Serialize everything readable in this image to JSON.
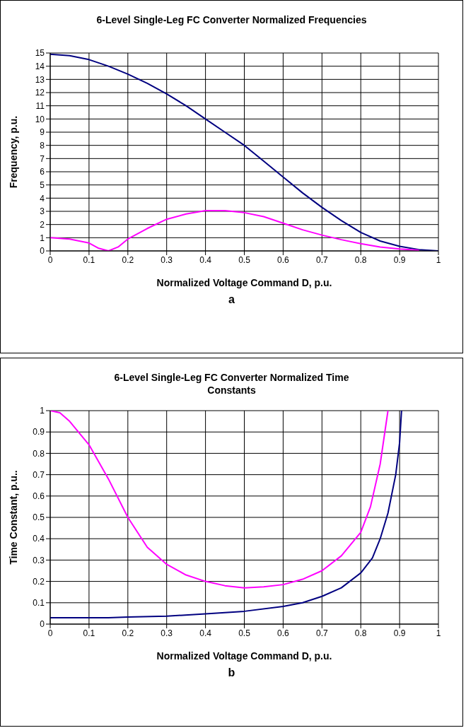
{
  "chart_data": [
    {
      "type": "line",
      "title": "6-Level Single-Leg FC Converter Normalized Frequencies",
      "xlabel": "Normalized Voltage Command D, p.u.",
      "ylabel": "Frequency, p.u.",
      "annotations": [
        "a"
      ],
      "xlim": [
        0,
        1
      ],
      "xticks": [
        0,
        0.1,
        0.2,
        0.3,
        0.4,
        0.5,
        0.6,
        0.7,
        0.8,
        0.9,
        1
      ],
      "ylim": [
        0,
        15
      ],
      "yticks": [
        0,
        1,
        2,
        3,
        4,
        5,
        6,
        7,
        8,
        9,
        10,
        11,
        12,
        13,
        14,
        15
      ],
      "grid": true,
      "legend": false,
      "marker": "none",
      "line_style": "solid",
      "series": [
        {
          "color": "#000080",
          "x": [
            0,
            0.05,
            0.1,
            0.15,
            0.2,
            0.25,
            0.3,
            0.35,
            0.4,
            0.45,
            0.5,
            0.55,
            0.6,
            0.65,
            0.7,
            0.75,
            0.8,
            0.85,
            0.9,
            0.95,
            1
          ],
          "values": [
            14.9,
            14.8,
            14.5,
            14.0,
            13.4,
            12.7,
            11.9,
            11.0,
            10.0,
            9.0,
            8.0,
            6.8,
            5.6,
            4.4,
            3.3,
            2.3,
            1.4,
            0.75,
            0.35,
            0.1,
            0
          ]
        },
        {
          "color": "#ff00ff",
          "x": [
            0,
            0.05,
            0.1,
            0.125,
            0.15,
            0.175,
            0.2,
            0.25,
            0.3,
            0.35,
            0.4,
            0.45,
            0.5,
            0.55,
            0.6,
            0.65,
            0.7,
            0.75,
            0.8,
            0.85,
            0.9,
            0.95
          ],
          "values": [
            1.0,
            0.9,
            0.6,
            0.2,
            0,
            0.3,
            0.9,
            1.7,
            2.4,
            2.8,
            3.05,
            3.05,
            2.9,
            2.6,
            2.1,
            1.6,
            1.2,
            0.85,
            0.55,
            0.3,
            0.15,
            0.05
          ]
        }
      ]
    },
    {
      "type": "line",
      "title": "6-Level Single-Leg FC Converter Normalized Time Constants",
      "xlabel": "Normalized Voltage Command D, p.u.",
      "ylabel": "Time Constant, p.u..",
      "annotations": [
        "b"
      ],
      "xlim": [
        0,
        1
      ],
      "xticks": [
        0,
        0.1,
        0.2,
        0.3,
        0.4,
        0.5,
        0.6,
        0.7,
        0.8,
        0.9,
        1
      ],
      "ylim": [
        0,
        1
      ],
      "yticks": [
        0,
        0.1,
        0.2,
        0.3,
        0.4,
        0.5,
        0.6,
        0.7,
        0.8,
        0.9,
        1
      ],
      "grid": true,
      "legend": false,
      "marker": "none",
      "line_style": "solid",
      "series": [
        {
          "color": "#ff00ff",
          "x": [
            0,
            0.025,
            0.05,
            0.1,
            0.15,
            0.2,
            0.25,
            0.3,
            0.35,
            0.4,
            0.45,
            0.5,
            0.55,
            0.6,
            0.65,
            0.7,
            0.75,
            0.8,
            0.825,
            0.85,
            0.87
          ],
          "values": [
            1.0,
            0.99,
            0.95,
            0.84,
            0.68,
            0.5,
            0.36,
            0.28,
            0.23,
            0.2,
            0.18,
            0.17,
            0.175,
            0.185,
            0.21,
            0.25,
            0.32,
            0.43,
            0.55,
            0.75,
            1.0
          ]
        },
        {
          "color": "#000080",
          "x": [
            0,
            0.1,
            0.15,
            0.2,
            0.3,
            0.4,
            0.5,
            0.6,
            0.65,
            0.7,
            0.75,
            0.8,
            0.83,
            0.85,
            0.87,
            0.89,
            0.9,
            0.905
          ],
          "values": [
            0.03,
            0.03,
            0.03,
            0.033,
            0.037,
            0.048,
            0.06,
            0.083,
            0.1,
            0.13,
            0.17,
            0.24,
            0.31,
            0.4,
            0.52,
            0.7,
            0.85,
            1.0
          ]
        }
      ]
    }
  ]
}
